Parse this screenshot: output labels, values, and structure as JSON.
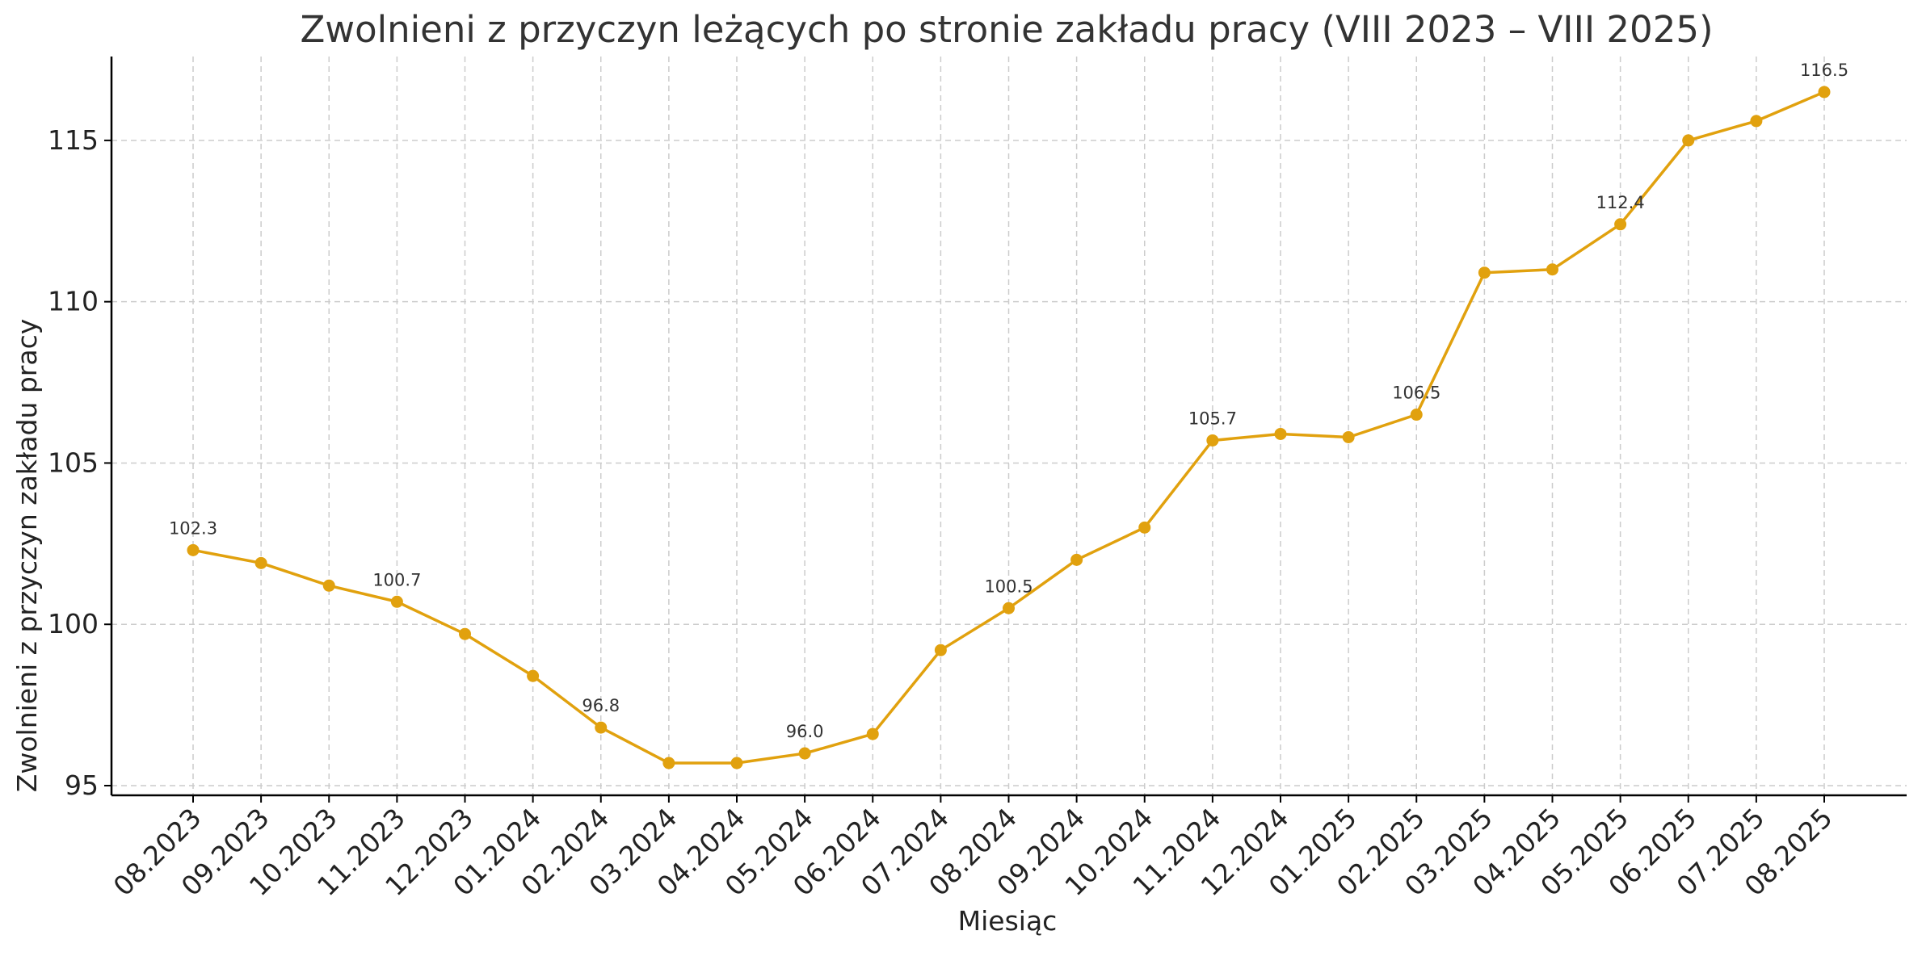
{
  "chart_data": {
    "type": "line",
    "title": "Zwolnieni z przyczyn leżących po stronie zakładu pracy (VIII 2023 – VIII 2025)",
    "xlabel": "Miesiąc",
    "ylabel": "Zwolnieni z przyczyn zakładu pracy",
    "categories": [
      "08.2023",
      "09.2023",
      "10.2023",
      "11.2023",
      "12.2023",
      "01.2024",
      "02.2024",
      "03.2024",
      "04.2024",
      "05.2024",
      "06.2024",
      "07.2024",
      "08.2024",
      "09.2024",
      "10.2024",
      "11.2024",
      "12.2024",
      "01.2025",
      "02.2025",
      "03.2025",
      "04.2025",
      "05.2025",
      "06.2025",
      "07.2025",
      "08.2025"
    ],
    "series": [
      {
        "color": "#E1A10E",
        "values": [
          102.3,
          101.9,
          101.2,
          100.7,
          99.7,
          98.4,
          96.8,
          95.7,
          95.7,
          96.0,
          96.6,
          99.2,
          100.5,
          102.0,
          103.0,
          105.7,
          105.9,
          105.8,
          106.5,
          110.9,
          111.0,
          112.4,
          115.0,
          115.6,
          116.5
        ]
      }
    ],
    "annotations": [
      {
        "index": 0,
        "label": "102.3"
      },
      {
        "index": 3,
        "label": "100.7"
      },
      {
        "index": 6,
        "label": "96.8"
      },
      {
        "index": 9,
        "label": "96.0"
      },
      {
        "index": 12,
        "label": "100.5"
      },
      {
        "index": 15,
        "label": "105.7"
      },
      {
        "index": 18,
        "label": "106.5"
      },
      {
        "index": 21,
        "label": "112.4"
      },
      {
        "index": 24,
        "label": "116.5"
      }
    ],
    "ylim": [
      94.7,
      117.6
    ],
    "yticks": [
      95,
      100,
      105,
      110,
      115
    ],
    "grid": true,
    "legend": "none"
  }
}
